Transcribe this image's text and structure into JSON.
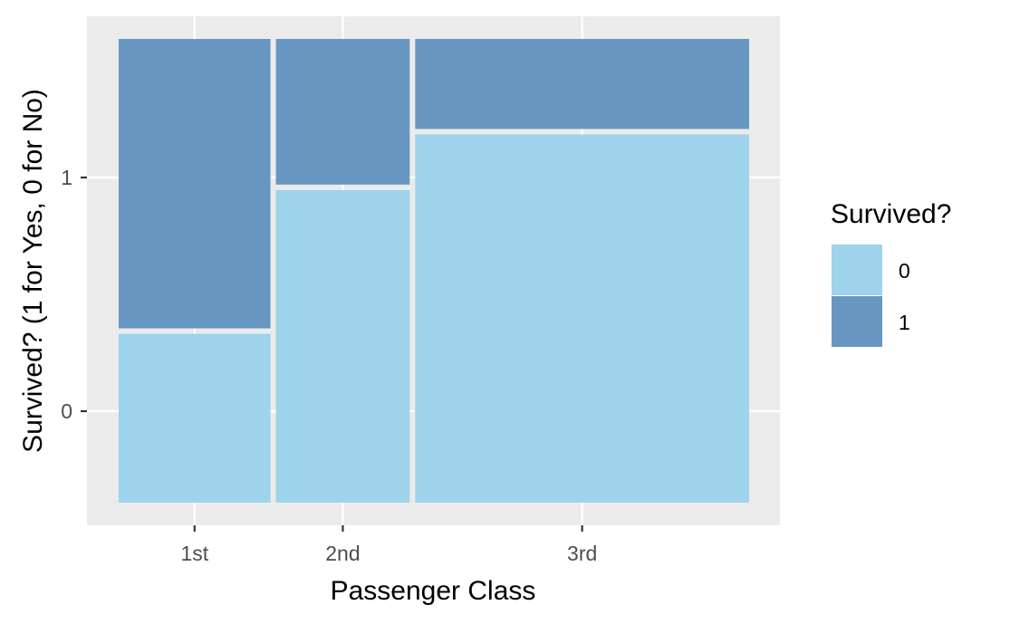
{
  "chart_data": {
    "type": "mosaic",
    "xlabel": "Passenger Class",
    "ylabel": "Survived? (1 for Yes, 0 for No)",
    "legend_title": "Survived?",
    "legend_position": "right",
    "grid": true,
    "categories": [
      "1st",
      "2nd",
      "3rd"
    ],
    "column_widths": [
      0.245,
      0.216,
      0.539
    ],
    "y_ticks": [
      "0",
      "1"
    ],
    "series": [
      {
        "name": "0",
        "color": "#9dd3eb",
        "proportions": [
          0.37,
          0.68,
          0.8
        ]
      },
      {
        "name": "1",
        "color": "#6797c0",
        "proportions": [
          0.63,
          0.32,
          0.2
        ]
      }
    ]
  }
}
